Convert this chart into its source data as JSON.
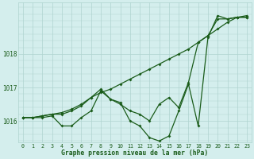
{
  "title": "Graphe pression niveau de la mer (hPa)",
  "bg_color": "#d4eeed",
  "grid_color": "#b0d4d0",
  "line_color": "#1a5c1a",
  "x_labels": [
    "0",
    "1",
    "2",
    "3",
    "4",
    "5",
    "6",
    "7",
    "8",
    "9",
    "10",
    "11",
    "12",
    "13",
    "14",
    "15",
    "16",
    "17",
    "18",
    "19",
    "20",
    "21",
    "22",
    "23"
  ],
  "series_smooth": [
    1016.1,
    1016.1,
    1016.15,
    1016.2,
    1016.25,
    1016.35,
    1016.5,
    1016.7,
    1016.85,
    1016.95,
    1017.1,
    1017.25,
    1017.4,
    1017.55,
    1017.7,
    1017.85,
    1018.0,
    1018.15,
    1018.35,
    1018.55,
    1018.75,
    1018.95,
    1019.1,
    1019.15
  ],
  "series_dip": [
    1016.1,
    1016.1,
    1016.1,
    1016.15,
    1015.85,
    1015.85,
    1016.1,
    1016.3,
    1016.9,
    1016.65,
    1016.55,
    1016.0,
    1015.85,
    1015.5,
    1015.4,
    1015.55,
    1016.3,
    1017.1,
    1015.85,
    1018.5,
    1019.15,
    1019.05,
    1019.1,
    1019.1
  ],
  "series_mid": [
    1016.1,
    1016.1,
    1016.15,
    1016.2,
    1016.2,
    1016.3,
    1016.45,
    1016.7,
    1016.95,
    1016.65,
    1016.5,
    1016.3,
    1016.2,
    1016.0,
    1016.5,
    1016.7,
    1016.4,
    1017.15,
    1018.35,
    1018.55,
    1019.05,
    1019.05,
    1019.1,
    1019.1
  ],
  "ylim_min": 1015.35,
  "ylim_max": 1019.55,
  "yticks": [
    1016,
    1017,
    1018
  ],
  "figsize": [
    3.2,
    2.0
  ],
  "dpi": 100
}
